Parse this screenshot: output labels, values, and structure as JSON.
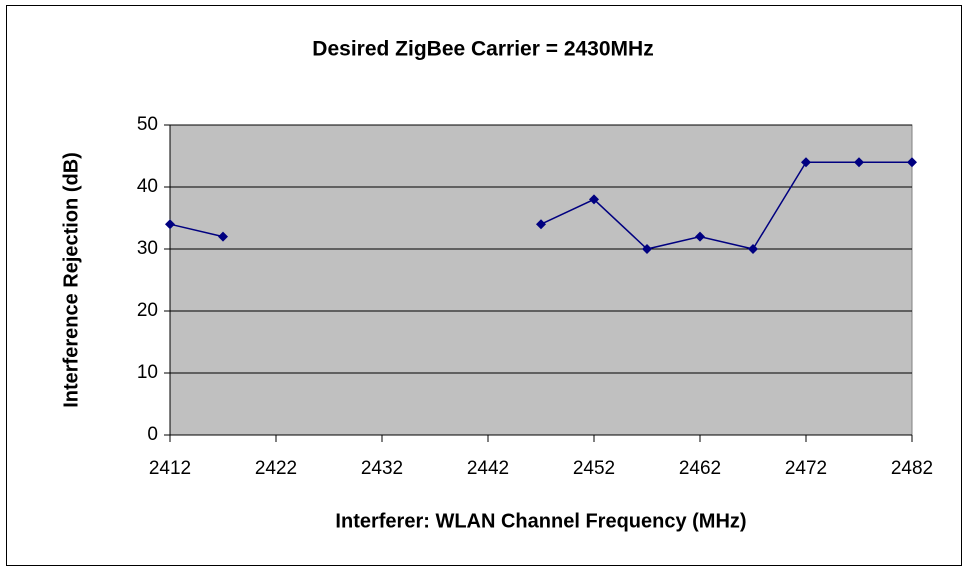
{
  "chart_data": {
    "type": "line",
    "title": "Desired ZigBee Carrier = 2430MHz",
    "x_label": "Interferer: WLAN Channel Frequency (MHz)",
    "y_label": "Interference Rejection (dB)",
    "x": [
      2412,
      2417,
      2422,
      2427,
      2432,
      2437,
      2442,
      2447,
      2452,
      2457,
      2462,
      2467,
      2472,
      2477,
      2482
    ],
    "series": [
      {
        "color": "#000080",
        "values": [
          34,
          32,
          null,
          null,
          null,
          null,
          null,
          34,
          38,
          30,
          32,
          30,
          44,
          44,
          44
        ]
      }
    ],
    "xlim": [
      2412,
      2482
    ],
    "xticks": [
      2412,
      2422,
      2432,
      2442,
      2452,
      2462,
      2472,
      2482
    ],
    "ylim": [
      0,
      50
    ],
    "yticks": [
      0,
      10,
      20,
      30,
      40,
      50
    ],
    "grid": true,
    "plot_background": "#c0c0c0"
  }
}
